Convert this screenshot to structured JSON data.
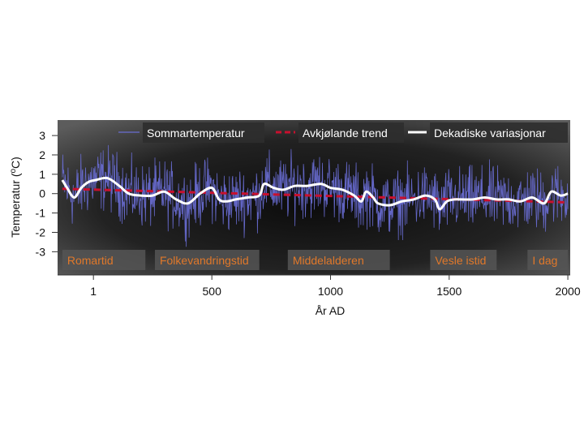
{
  "chart_data": {
    "type": "line",
    "xlabel": "År AD",
    "ylabel": "Temperatur (oC)",
    "ylabel_main": "Temperatur (",
    "ylabel_sup": "o",
    "ylabel_tail": "C)",
    "xlim": [
      -150,
      2010
    ],
    "ylim": [
      -4.2,
      3.8
    ],
    "x_ticks": [
      1,
      500,
      1000,
      1500,
      2000
    ],
    "x_tick_labels": [
      "1",
      "500",
      "1000",
      "1500",
      "2000"
    ],
    "y_ticks": [
      3,
      2,
      1,
      0,
      -1,
      -2,
      -3
    ],
    "y_tick_labels": [
      "3",
      "2",
      "1",
      "0",
      "-1",
      "-2",
      "-3"
    ],
    "legend_placement": "top-right",
    "series": [
      {
        "name": "Sommartemperatur",
        "style": "thin-line",
        "color": "#6b6fd8",
        "note_values": "annual values, noisy roughly ±1.5 °C around the decadal curve"
      },
      {
        "name": "Avkjølande trend",
        "style": "dashed",
        "color": "#c8102e",
        "x": [
          -130,
          2000
        ],
        "values": [
          0.25,
          -0.45
        ]
      },
      {
        "name": "Dekadiske variasjonar",
        "style": "thick-line",
        "color": "#ffffff",
        "x": [
          -130,
          -110,
          -80,
          -50,
          -20,
          10,
          60,
          110,
          150,
          200,
          250,
          300,
          350,
          400,
          450,
          500,
          530,
          560,
          600,
          650,
          700,
          720,
          760,
          800,
          850,
          900,
          960,
          1000,
          1050,
          1100,
          1130,
          1150,
          1180,
          1200,
          1250,
          1300,
          1350,
          1400,
          1440,
          1460,
          1490,
          1520,
          1550,
          1600,
          1650,
          1700,
          1750,
          1800,
          1850,
          1900,
          1930,
          1970,
          2000
        ],
        "values": [
          0.7,
          0.3,
          -0.2,
          0.3,
          0.6,
          0.7,
          0.8,
          0.4,
          0.0,
          -0.1,
          -0.1,
          0.1,
          -0.3,
          -0.5,
          0.0,
          0.3,
          -0.3,
          -0.4,
          -0.3,
          -0.2,
          -0.1,
          0.5,
          0.3,
          0.2,
          0.4,
          0.4,
          0.5,
          0.3,
          0.2,
          -0.1,
          -0.4,
          0.1,
          -0.2,
          -0.5,
          -0.6,
          -0.4,
          -0.3,
          -0.1,
          -0.3,
          -0.8,
          -0.4,
          -0.3,
          -0.3,
          -0.3,
          -0.2,
          -0.3,
          -0.3,
          -0.4,
          -0.2,
          -0.5,
          0.1,
          -0.1,
          0.0
        ]
      }
    ],
    "periods": [
      {
        "label": "Romartid",
        "x_start": -130,
        "x_end": 220
      },
      {
        "label": "Folkevandringstid",
        "x_start": 260,
        "x_end": 700
      },
      {
        "label": "Middelalderen",
        "x_start": 820,
        "x_end": 1250
      },
      {
        "label": "Vesle istid",
        "x_start": 1420,
        "x_end": 1700
      },
      {
        "label": "I dag",
        "x_start": 1830,
        "x_end": 2000
      }
    ]
  },
  "colors": {
    "plot_bg_dark": "#0c0c0c",
    "plot_bg_light": "#5a5a5a",
    "label_box": "#555555",
    "period_text": "#e0782a",
    "raw_series": "#6b6fd8",
    "trend": "#c8102e",
    "decadal": "#ffffff"
  }
}
